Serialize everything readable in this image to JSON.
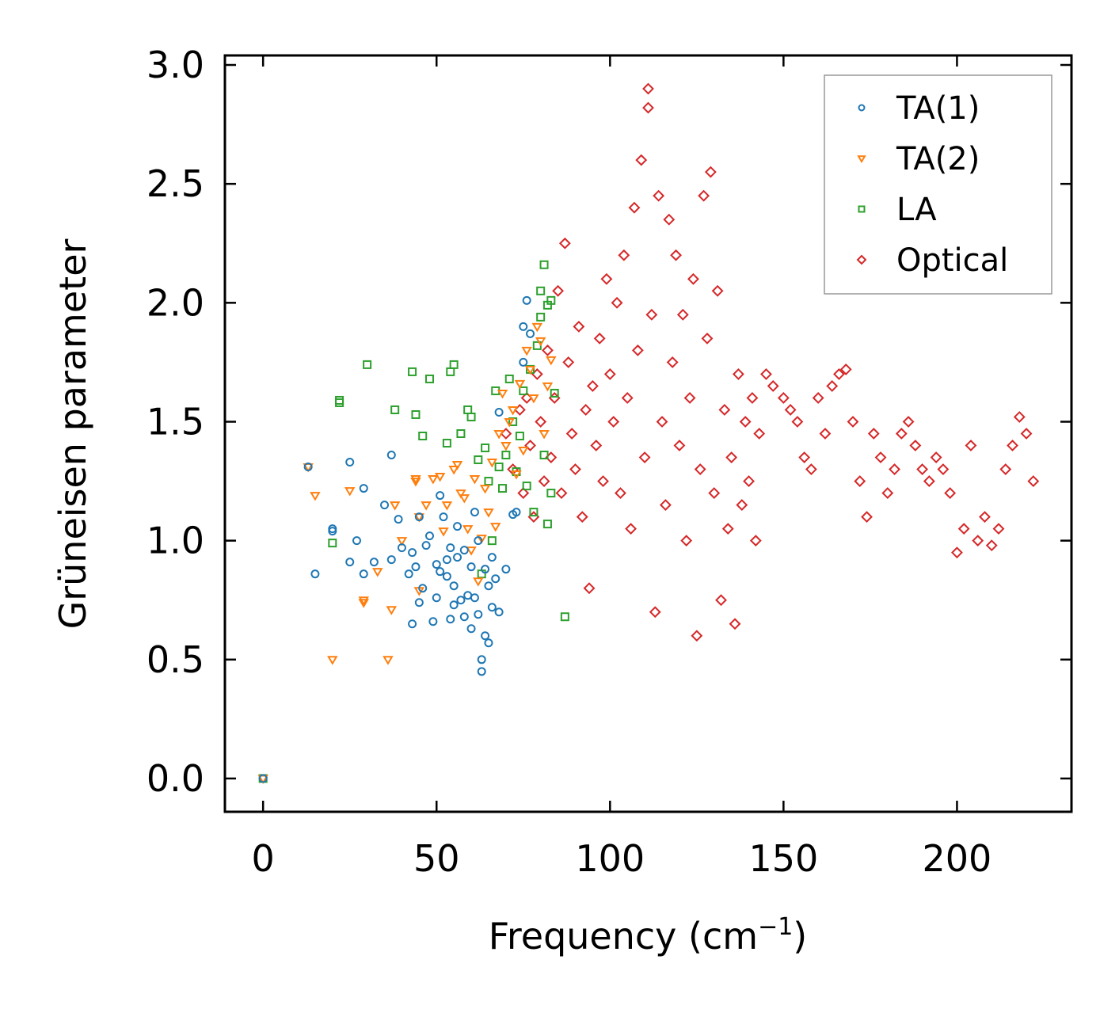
{
  "chart_data": {
    "type": "scatter",
    "xlabel": "Frequency (cm",
    "xlabel_sup": "−1",
    "xlabel_close": ")",
    "ylabel": "Grüneisen parameter",
    "xlim": [
      -11,
      233
    ],
    "ylim": [
      -0.14,
      3.04
    ],
    "xticks": [
      0,
      50,
      100,
      150,
      200
    ],
    "xtick_labels": [
      "0",
      "50",
      "100",
      "150",
      "200"
    ],
    "yticks": [
      0.0,
      0.5,
      1.0,
      1.5,
      2.0,
      2.5,
      3.0
    ],
    "ytick_labels": [
      "0.0",
      "0.5",
      "1.0",
      "1.5",
      "2.0",
      "2.5",
      "3.0"
    ],
    "legend_position": "top-right",
    "series": [
      {
        "name": "TA(1)",
        "color": "#1f77b4",
        "marker": "circle",
        "points": [
          [
            0,
            0
          ],
          [
            13,
            1.31
          ],
          [
            15,
            0.86
          ],
          [
            20,
            1.05
          ],
          [
            20,
            1.04
          ],
          [
            25,
            0.91
          ],
          [
            25,
            1.33
          ],
          [
            27,
            1.0
          ],
          [
            29,
            1.22
          ],
          [
            29,
            0.86
          ],
          [
            32,
            0.91
          ],
          [
            35,
            1.15
          ],
          [
            37,
            0.92
          ],
          [
            37,
            1.36
          ],
          [
            39,
            1.09
          ],
          [
            40,
            0.97
          ],
          [
            42,
            0.86
          ],
          [
            43,
            0.65
          ],
          [
            43,
            0.95
          ],
          [
            44,
            0.89
          ],
          [
            45,
            0.74
          ],
          [
            45,
            1.1
          ],
          [
            46,
            0.8
          ],
          [
            47,
            0.98
          ],
          [
            48,
            1.02
          ],
          [
            49,
            0.66
          ],
          [
            50,
            0.9
          ],
          [
            50,
            0.76
          ],
          [
            51,
            1.19
          ],
          [
            51,
            0.87
          ],
          [
            52,
            1.1
          ],
          [
            53,
            0.85
          ],
          [
            53,
            0.92
          ],
          [
            54,
            0.67
          ],
          [
            54,
            0.97
          ],
          [
            55,
            0.73
          ],
          [
            55,
            0.81
          ],
          [
            56,
            1.06
          ],
          [
            56,
            0.93
          ],
          [
            57,
            0.75
          ],
          [
            58,
            0.68
          ],
          [
            58,
            0.96
          ],
          [
            59,
            0.77
          ],
          [
            60,
            0.89
          ],
          [
            60,
            0.63
          ],
          [
            61,
            1.12
          ],
          [
            61,
            0.76
          ],
          [
            62,
            0.69
          ],
          [
            62,
            1.0
          ],
          [
            63,
            0.5
          ],
          [
            63,
            0.45
          ],
          [
            64,
            0.6
          ],
          [
            64,
            0.88
          ],
          [
            65,
            0.57
          ],
          [
            65,
            0.81
          ],
          [
            66,
            0.72
          ],
          [
            66,
            0.93
          ],
          [
            67,
            0.84
          ],
          [
            68,
            1.54
          ],
          [
            68,
            0.7
          ],
          [
            70,
            0.88
          ],
          [
            72,
            1.11
          ],
          [
            73,
            1.12
          ],
          [
            75,
            1.9
          ],
          [
            75,
            1.75
          ],
          [
            76,
            2.01
          ],
          [
            77,
            1.87
          ]
        ]
      },
      {
        "name": "TA(2)",
        "color": "#ff7f0e",
        "marker": "triangle-down",
        "points": [
          [
            0,
            0
          ],
          [
            13,
            1.31
          ],
          [
            15,
            1.19
          ],
          [
            20,
            0.5
          ],
          [
            25,
            1.21
          ],
          [
            29,
            0.75
          ],
          [
            29,
            0.74
          ],
          [
            33,
            0.87
          ],
          [
            36,
            0.5
          ],
          [
            37,
            0.71
          ],
          [
            38,
            1.15
          ],
          [
            40,
            1.0
          ],
          [
            44,
            1.25
          ],
          [
            44,
            1.26
          ],
          [
            45,
            1.1
          ],
          [
            45,
            0.79
          ],
          [
            47,
            1.15
          ],
          [
            49,
            1.26
          ],
          [
            51,
            1.27
          ],
          [
            52,
            1.04
          ],
          [
            53,
            1.15
          ],
          [
            55,
            1.3
          ],
          [
            56,
            1.32
          ],
          [
            57,
            1.2
          ],
          [
            58,
            1.18
          ],
          [
            59,
            1.05
          ],
          [
            60,
            0.96
          ],
          [
            61,
            1.26
          ],
          [
            62,
            0.83
          ],
          [
            63,
            1.01
          ],
          [
            64,
            1.22
          ],
          [
            65,
            1.12
          ],
          [
            66,
            1.33
          ],
          [
            67,
            1.06
          ],
          [
            68,
            1.45
          ],
          [
            69,
            1.62
          ],
          [
            70,
            1.4
          ],
          [
            71,
            1.5
          ],
          [
            72,
            1.55
          ],
          [
            73,
            1.28
          ],
          [
            74,
            1.66
          ],
          [
            75,
            1.38
          ],
          [
            76,
            1.8
          ],
          [
            77,
            1.72
          ],
          [
            78,
            1.6
          ],
          [
            79,
            1.9
          ],
          [
            80,
            1.84
          ],
          [
            81,
            1.45
          ],
          [
            82,
            1.65
          ],
          [
            83,
            1.76
          ]
        ]
      },
      {
        "name": "LA",
        "color": "#2ca02c",
        "marker": "square",
        "points": [
          [
            0,
            0
          ],
          [
            20,
            0.99
          ],
          [
            22,
            1.59
          ],
          [
            22,
            1.58
          ],
          [
            30,
            1.74
          ],
          [
            38,
            1.55
          ],
          [
            43,
            1.71
          ],
          [
            44,
            1.53
          ],
          [
            46,
            1.44
          ],
          [
            48,
            1.68
          ],
          [
            53,
            1.41
          ],
          [
            54,
            1.71
          ],
          [
            55,
            1.74
          ],
          [
            57,
            1.45
          ],
          [
            59,
            1.55
          ],
          [
            60,
            1.52
          ],
          [
            62,
            1.34
          ],
          [
            63,
            0.86
          ],
          [
            64,
            1.39
          ],
          [
            65,
            1.25
          ],
          [
            66,
            1.0
          ],
          [
            67,
            1.63
          ],
          [
            68,
            1.31
          ],
          [
            69,
            1.22
          ],
          [
            70,
            1.36
          ],
          [
            71,
            1.68
          ],
          [
            72,
            1.5
          ],
          [
            73,
            1.29
          ],
          [
            74,
            1.44
          ],
          [
            75,
            1.63
          ],
          [
            76,
            1.23
          ],
          [
            77,
            1.72
          ],
          [
            78,
            1.12
          ],
          [
            79,
            1.82
          ],
          [
            80,
            1.94
          ],
          [
            80,
            2.05
          ],
          [
            81,
            1.36
          ],
          [
            81,
            2.16
          ],
          [
            82,
            1.99
          ],
          [
            82,
            1.07
          ],
          [
            83,
            1.2
          ],
          [
            83,
            2.01
          ],
          [
            84,
            1.62
          ],
          [
            87,
            0.68
          ]
        ]
      },
      {
        "name": "Optical",
        "color": "#d62728",
        "marker": "diamond",
        "points": [
          [
            70,
            1.45
          ],
          [
            72,
            1.3
          ],
          [
            74,
            1.55
          ],
          [
            75,
            1.2
          ],
          [
            76,
            1.6
          ],
          [
            77,
            1.4
          ],
          [
            78,
            1.1
          ],
          [
            79,
            1.7
          ],
          [
            80,
            1.5
          ],
          [
            81,
            1.25
          ],
          [
            82,
            1.8
          ],
          [
            83,
            1.35
          ],
          [
            84,
            1.6
          ],
          [
            85,
            2.05
          ],
          [
            86,
            1.2
          ],
          [
            87,
            2.25
          ],
          [
            88,
            1.75
          ],
          [
            89,
            1.45
          ],
          [
            90,
            1.3
          ],
          [
            91,
            1.9
          ],
          [
            92,
            1.1
          ],
          [
            93,
            1.55
          ],
          [
            94,
            0.8
          ],
          [
            95,
            1.65
          ],
          [
            96,
            1.4
          ],
          [
            97,
            1.85
          ],
          [
            98,
            1.25
          ],
          [
            99,
            2.1
          ],
          [
            100,
            1.7
          ],
          [
            101,
            1.5
          ],
          [
            102,
            2.0
          ],
          [
            103,
            1.2
          ],
          [
            104,
            2.2
          ],
          [
            105,
            1.6
          ],
          [
            106,
            1.05
          ],
          [
            107,
            2.4
          ],
          [
            108,
            1.8
          ],
          [
            109,
            2.6
          ],
          [
            110,
            1.35
          ],
          [
            111,
            2.9
          ],
          [
            111,
            2.82
          ],
          [
            112,
            1.95
          ],
          [
            113,
            0.7
          ],
          [
            114,
            2.45
          ],
          [
            115,
            1.5
          ],
          [
            116,
            1.15
          ],
          [
            117,
            2.35
          ],
          [
            118,
            1.75
          ],
          [
            119,
            2.2
          ],
          [
            120,
            1.4
          ],
          [
            121,
            1.95
          ],
          [
            122,
            1.0
          ],
          [
            123,
            1.6
          ],
          [
            124,
            2.1
          ],
          [
            125,
            0.6
          ],
          [
            126,
            1.3
          ],
          [
            127,
            2.45
          ],
          [
            128,
            1.85
          ],
          [
            129,
            2.55
          ],
          [
            130,
            1.2
          ],
          [
            131,
            2.05
          ],
          [
            132,
            0.75
          ],
          [
            133,
            1.55
          ],
          [
            134,
            1.05
          ],
          [
            135,
            1.35
          ],
          [
            136,
            0.65
          ],
          [
            137,
            1.7
          ],
          [
            138,
            1.15
          ],
          [
            139,
            1.5
          ],
          [
            140,
            1.25
          ],
          [
            141,
            1.6
          ],
          [
            142,
            1.0
          ],
          [
            143,
            1.45
          ],
          [
            145,
            1.7
          ],
          [
            147,
            1.65
          ],
          [
            150,
            1.6
          ],
          [
            152,
            1.55
          ],
          [
            154,
            1.5
          ],
          [
            156,
            1.35
          ],
          [
            158,
            1.3
          ],
          [
            160,
            1.6
          ],
          [
            162,
            1.45
          ],
          [
            164,
            1.65
          ],
          [
            166,
            1.7
          ],
          [
            168,
            1.72
          ],
          [
            170,
            1.5
          ],
          [
            172,
            1.25
          ],
          [
            174,
            1.1
          ],
          [
            176,
            1.45
          ],
          [
            178,
            1.35
          ],
          [
            180,
            1.2
          ],
          [
            182,
            1.3
          ],
          [
            184,
            1.45
          ],
          [
            186,
            1.5
          ],
          [
            188,
            1.4
          ],
          [
            190,
            1.3
          ],
          [
            192,
            1.25
          ],
          [
            194,
            1.35
          ],
          [
            196,
            1.3
          ],
          [
            198,
            1.2
          ],
          [
            200,
            0.95
          ],
          [
            202,
            1.05
          ],
          [
            204,
            1.4
          ],
          [
            206,
            1.0
          ],
          [
            208,
            1.1
          ],
          [
            210,
            0.98
          ],
          [
            212,
            1.05
          ],
          [
            214,
            1.3
          ],
          [
            216,
            1.4
          ],
          [
            218,
            1.52
          ],
          [
            220,
            1.45
          ],
          [
            222,
            1.25
          ]
        ]
      }
    ]
  }
}
